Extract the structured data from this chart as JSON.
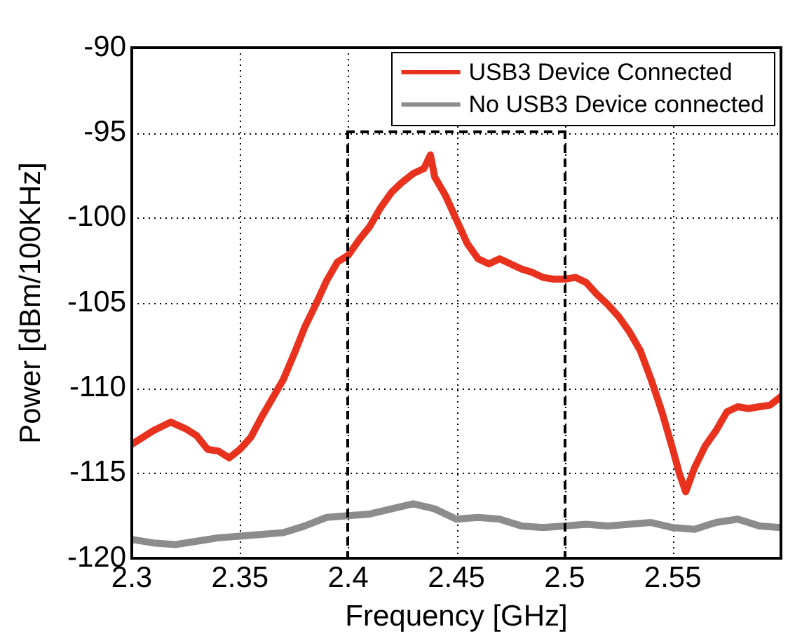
{
  "chart_data": {
    "type": "line",
    "xlabel": "Frequency [GHz]",
    "ylabel": "Power [dBm/100KHz]",
    "xlim": [
      2.3,
      2.6
    ],
    "xticks": [
      2.3,
      2.35,
      2.4,
      2.45,
      2.5,
      2.55
    ],
    "ylim": [
      -120,
      -90
    ],
    "yticks": [
      -120,
      -115,
      -110,
      -105,
      -100,
      -95,
      -90
    ],
    "grid": true,
    "legend": "top right",
    "marker": "none",
    "line_style": "solid",
    "series": [
      {
        "name": "USB3 Device Connected",
        "color": "#e8321e",
        "x": [
          2.3,
          2.305,
          2.31,
          2.318,
          2.325,
          2.33,
          2.335,
          2.34,
          2.345,
          2.35,
          2.355,
          2.36,
          2.365,
          2.37,
          2.375,
          2.38,
          2.385,
          2.39,
          2.395,
          2.4,
          2.405,
          2.41,
          2.415,
          2.42,
          2.425,
          2.43,
          2.435,
          2.438,
          2.44,
          2.445,
          2.45,
          2.455,
          2.46,
          2.465,
          2.47,
          2.475,
          2.48,
          2.485,
          2.49,
          2.495,
          2.5,
          2.505,
          2.51,
          2.515,
          2.52,
          2.525,
          2.53,
          2.535,
          2.54,
          2.545,
          2.55,
          2.553,
          2.556,
          2.56,
          2.565,
          2.57,
          2.575,
          2.58,
          2.585,
          2.59,
          2.595,
          2.6
        ],
        "values": [
          -113.3,
          -112.9,
          -112.5,
          -112.0,
          -112.4,
          -112.8,
          -113.6,
          -113.7,
          -114.1,
          -113.6,
          -112.9,
          -111.7,
          -110.6,
          -109.5,
          -108.0,
          -106.4,
          -105.1,
          -103.7,
          -102.6,
          -102.2,
          -101.3,
          -100.5,
          -99.4,
          -98.5,
          -97.9,
          -97.4,
          -97.1,
          -96.3,
          -97.6,
          -98.7,
          -100.1,
          -101.5,
          -102.4,
          -102.7,
          -102.4,
          -102.7,
          -103.0,
          -103.2,
          -103.5,
          -103.6,
          -103.6,
          -103.5,
          -103.8,
          -104.5,
          -105.1,
          -105.8,
          -106.7,
          -107.8,
          -109.5,
          -111.4,
          -113.6,
          -115.0,
          -116.1,
          -114.7,
          -113.4,
          -112.5,
          -111.4,
          -111.1,
          -111.2,
          -111.1,
          -111.0,
          -110.5
        ]
      },
      {
        "name": "No USB3 Device connected",
        "color": "#8c8c8c",
        "x": [
          2.3,
          2.31,
          2.32,
          2.33,
          2.34,
          2.35,
          2.36,
          2.37,
          2.38,
          2.39,
          2.4,
          2.41,
          2.42,
          2.43,
          2.44,
          2.45,
          2.46,
          2.47,
          2.48,
          2.49,
          2.5,
          2.51,
          2.52,
          2.53,
          2.54,
          2.55,
          2.56,
          2.57,
          2.58,
          2.59,
          2.6
        ],
        "values": [
          -118.9,
          -119.1,
          -119.2,
          -119.0,
          -118.8,
          -118.7,
          -118.6,
          -118.5,
          -118.1,
          -117.6,
          -117.5,
          -117.4,
          -117.1,
          -116.8,
          -117.1,
          -117.7,
          -117.6,
          -117.7,
          -118.1,
          -118.2,
          -118.1,
          -118.0,
          -118.1,
          -118.0,
          -117.9,
          -118.2,
          -118.3,
          -117.9,
          -117.7,
          -118.1,
          -118.2
        ]
      }
    ]
  }
}
